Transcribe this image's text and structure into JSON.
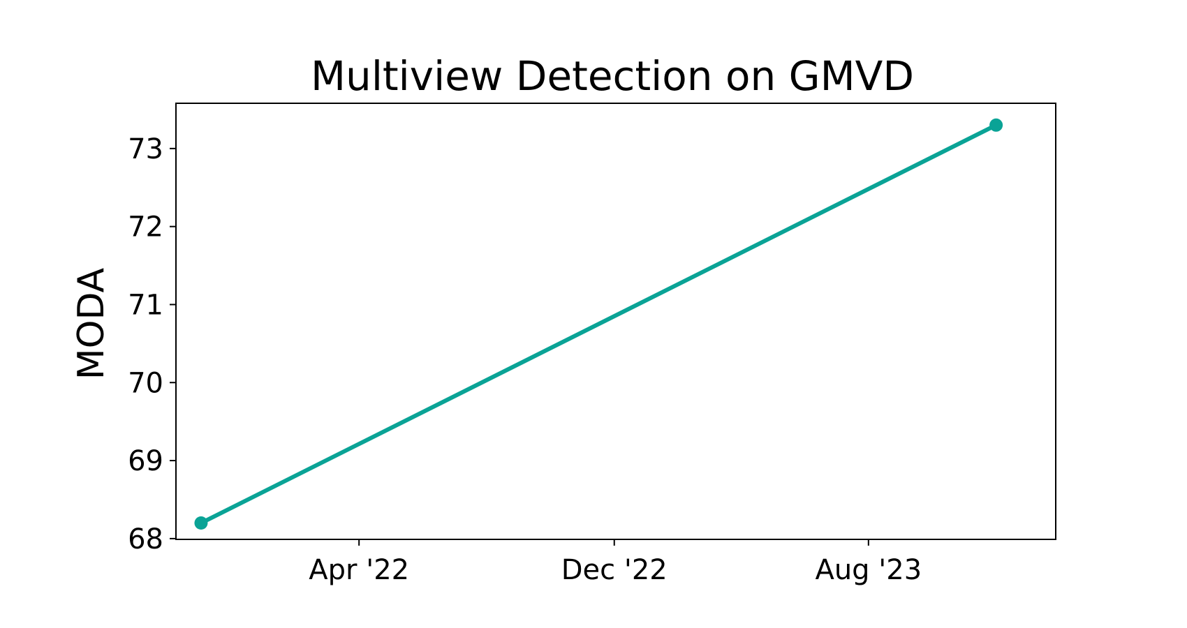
{
  "chart_data": {
    "type": "line",
    "title": "Multiview Detection on GMVD",
    "xlabel": "",
    "ylabel": "MODA",
    "x_type": "date",
    "xlim": [
      "2021-10-08",
      "2024-01-27"
    ],
    "ylim": [
      67.99,
      73.58
    ],
    "x_ticks": [
      {
        "date": "2022-04-01",
        "label": "Apr '22"
      },
      {
        "date": "2022-12-01",
        "label": "Dec '22"
      },
      {
        "date": "2023-08-01",
        "label": "Aug '23"
      }
    ],
    "y_ticks": [
      68,
      69,
      70,
      71,
      72,
      73
    ],
    "grid": false,
    "color": "#0aa396",
    "series": [
      {
        "points": [
          {
            "x": "2021-11-01",
            "y": 68.2
          },
          {
            "x": "2023-12-01",
            "y": 73.3
          }
        ]
      }
    ]
  }
}
